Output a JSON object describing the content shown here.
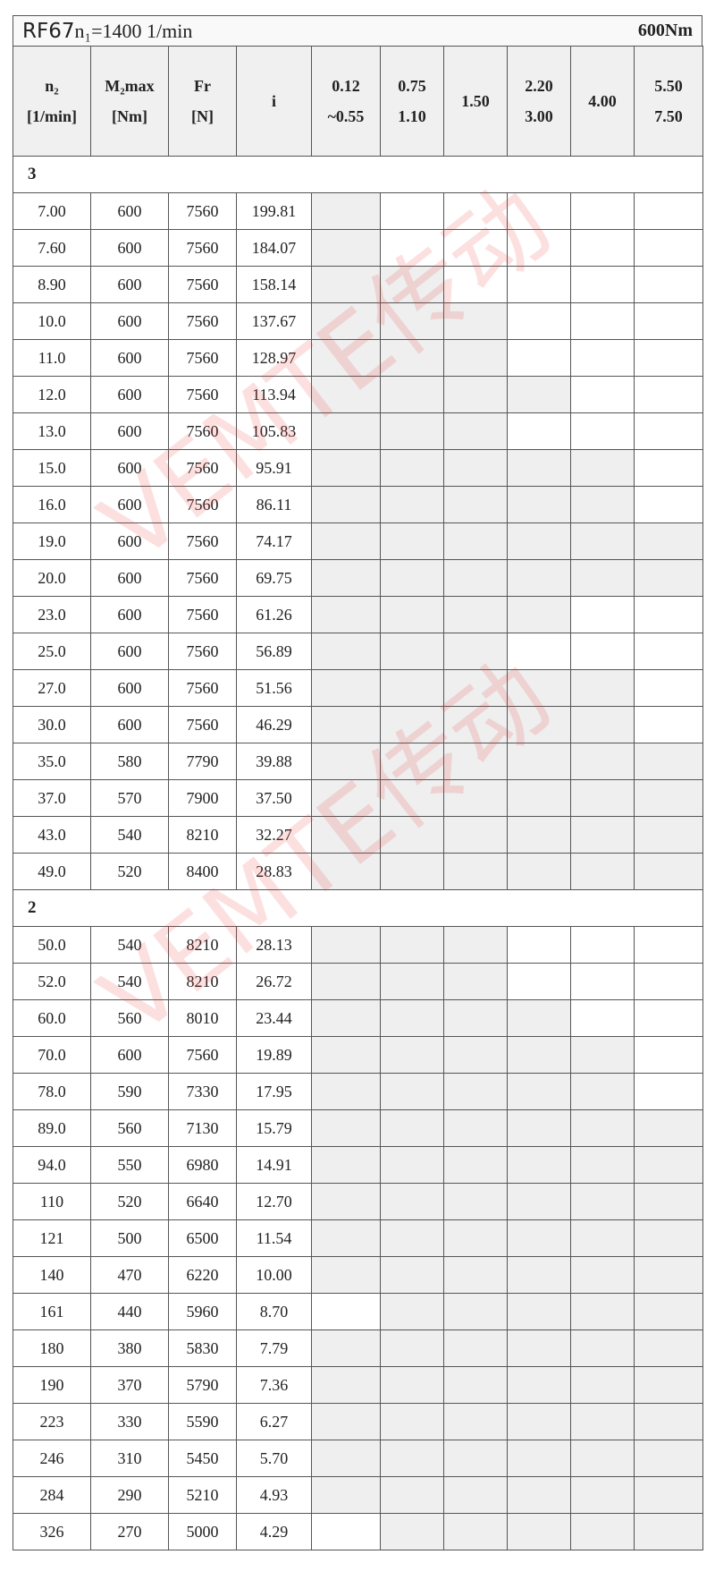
{
  "title": {
    "model": "RF67",
    "n1": "n₁=1400 1/min",
    "torque": "600Nm"
  },
  "headers": {
    "n2": [
      "n₂",
      "[1/min]"
    ],
    "m2": [
      "M₂max",
      "[Nm]"
    ],
    "fr": [
      "Fr",
      "[N]"
    ],
    "i": "i",
    "power": [
      [
        "0.12",
        "~0.55"
      ],
      [
        "0.75",
        "1.10"
      ],
      [
        "1.50"
      ],
      [
        "2.20",
        "3.00"
      ],
      [
        "4.00"
      ],
      [
        "5.50",
        "7.50"
      ]
    ]
  },
  "watermark": "VEMTE传动",
  "shade_color": "#efefef",
  "sections": [
    {
      "label": "3",
      "rows": [
        {
          "n2": "7.00",
          "m2": "600",
          "fr": "7560",
          "i": "199.81",
          "shade": [
            1,
            0,
            0,
            0,
            0,
            0
          ]
        },
        {
          "n2": "7.60",
          "m2": "600",
          "fr": "7560",
          "i": "184.07",
          "shade": [
            1,
            0,
            0,
            0,
            0,
            0
          ]
        },
        {
          "n2": "8.90",
          "m2": "600",
          "fr": "7560",
          "i": "158.14",
          "shade": [
            1,
            1,
            0,
            0,
            0,
            0
          ]
        },
        {
          "n2": "10.0",
          "m2": "600",
          "fr": "7560",
          "i": "137.67",
          "shade": [
            1,
            1,
            1,
            0,
            0,
            0
          ]
        },
        {
          "n2": "11.0",
          "m2": "600",
          "fr": "7560",
          "i": "128.97",
          "shade": [
            1,
            1,
            1,
            0,
            0,
            0
          ]
        },
        {
          "n2": "12.0",
          "m2": "600",
          "fr": "7560",
          "i": "113.94",
          "shade": [
            1,
            1,
            1,
            1,
            0,
            0
          ]
        },
        {
          "n2": "13.0",
          "m2": "600",
          "fr": "7560",
          "i": "105.83",
          "shade": [
            1,
            1,
            1,
            0,
            0,
            0
          ]
        },
        {
          "n2": "15.0",
          "m2": "600",
          "fr": "7560",
          "i": "95.91",
          "shade": [
            1,
            1,
            1,
            1,
            1,
            0
          ]
        },
        {
          "n2": "16.0",
          "m2": "600",
          "fr": "7560",
          "i": "86.11",
          "shade": [
            1,
            1,
            1,
            1,
            1,
            0
          ]
        },
        {
          "n2": "19.0",
          "m2": "600",
          "fr": "7560",
          "i": "74.17",
          "shade": [
            1,
            1,
            1,
            1,
            1,
            1
          ]
        },
        {
          "n2": "20.0",
          "m2": "600",
          "fr": "7560",
          "i": "69.75",
          "shade": [
            1,
            1,
            1,
            1,
            1,
            1
          ]
        },
        {
          "n2": "23.0",
          "m2": "600",
          "fr": "7560",
          "i": "61.26",
          "shade": [
            1,
            1,
            1,
            1,
            0,
            0
          ]
        },
        {
          "n2": "25.0",
          "m2": "600",
          "fr": "7560",
          "i": "56.89",
          "shade": [
            1,
            1,
            1,
            0,
            0,
            0
          ]
        },
        {
          "n2": "27.0",
          "m2": "600",
          "fr": "7560",
          "i": "51.56",
          "shade": [
            1,
            1,
            1,
            1,
            1,
            0
          ]
        },
        {
          "n2": "30.0",
          "m2": "600",
          "fr": "7560",
          "i": "46.29",
          "shade": [
            1,
            1,
            1,
            1,
            1,
            0
          ]
        },
        {
          "n2": "35.0",
          "m2": "580",
          "fr": "7790",
          "i": "39.88",
          "shade": [
            1,
            1,
            1,
            1,
            1,
            1
          ]
        },
        {
          "n2": "37.0",
          "m2": "570",
          "fr": "7900",
          "i": "37.50",
          "shade": [
            1,
            1,
            1,
            1,
            1,
            1
          ]
        },
        {
          "n2": "43.0",
          "m2": "540",
          "fr": "8210",
          "i": "32.27",
          "shade": [
            1,
            1,
            1,
            1,
            1,
            1
          ]
        },
        {
          "n2": "49.0",
          "m2": "520",
          "fr": "8400",
          "i": "28.83",
          "shade": [
            1,
            1,
            1,
            1,
            1,
            1
          ]
        }
      ]
    },
    {
      "label": "2",
      "rows": [
        {
          "n2": "50.0",
          "m2": "540",
          "fr": "8210",
          "i": "28.13",
          "shade": [
            1,
            1,
            1,
            0,
            0,
            0
          ]
        },
        {
          "n2": "52.0",
          "m2": "540",
          "fr": "8210",
          "i": "26.72",
          "shade": [
            1,
            1,
            1,
            0,
            0,
            0
          ]
        },
        {
          "n2": "60.0",
          "m2": "560",
          "fr": "8010",
          "i": "23.44",
          "shade": [
            1,
            1,
            1,
            1,
            0,
            0
          ]
        },
        {
          "n2": "70.0",
          "m2": "600",
          "fr": "7560",
          "i": "19.89",
          "shade": [
            1,
            1,
            1,
            1,
            1,
            0
          ]
        },
        {
          "n2": "78.0",
          "m2": "590",
          "fr": "7330",
          "i": "17.95",
          "shade": [
            1,
            1,
            1,
            1,
            1,
            0
          ]
        },
        {
          "n2": "89.0",
          "m2": "560",
          "fr": "7130",
          "i": "15.79",
          "shade": [
            1,
            1,
            1,
            1,
            1,
            1
          ]
        },
        {
          "n2": "94.0",
          "m2": "550",
          "fr": "6980",
          "i": "14.91",
          "shade": [
            1,
            1,
            1,
            1,
            1,
            1
          ]
        },
        {
          "n2": "110",
          "m2": "520",
          "fr": "6640",
          "i": "12.70",
          "shade": [
            1,
            1,
            1,
            1,
            1,
            1
          ]
        },
        {
          "n2": "121",
          "m2": "500",
          "fr": "6500",
          "i": "11.54",
          "shade": [
            1,
            1,
            1,
            1,
            1,
            1
          ]
        },
        {
          "n2": "140",
          "m2": "470",
          "fr": "6220",
          "i": "10.00",
          "shade": [
            1,
            1,
            1,
            1,
            1,
            1
          ]
        },
        {
          "n2": "161",
          "m2": "440",
          "fr": "5960",
          "i": "8.70",
          "shade": [
            0,
            1,
            1,
            1,
            1,
            1
          ]
        },
        {
          "n2": "180",
          "m2": "380",
          "fr": "5830",
          "i": "7.79",
          "shade": [
            1,
            1,
            1,
            1,
            1,
            1
          ]
        },
        {
          "n2": "190",
          "m2": "370",
          "fr": "5790",
          "i": "7.36",
          "shade": [
            1,
            1,
            1,
            1,
            1,
            1
          ]
        },
        {
          "n2": "223",
          "m2": "330",
          "fr": "5590",
          "i": "6.27",
          "shade": [
            1,
            1,
            1,
            1,
            1,
            1
          ]
        },
        {
          "n2": "246",
          "m2": "310",
          "fr": "5450",
          "i": "5.70",
          "shade": [
            1,
            1,
            1,
            1,
            1,
            1
          ]
        },
        {
          "n2": "284",
          "m2": "290",
          "fr": "5210",
          "i": "4.93",
          "shade": [
            1,
            1,
            1,
            1,
            1,
            1
          ]
        },
        {
          "n2": "326",
          "m2": "270",
          "fr": "5000",
          "i": "4.29",
          "shade": [
            0,
            1,
            1,
            1,
            1,
            1
          ]
        }
      ]
    }
  ]
}
